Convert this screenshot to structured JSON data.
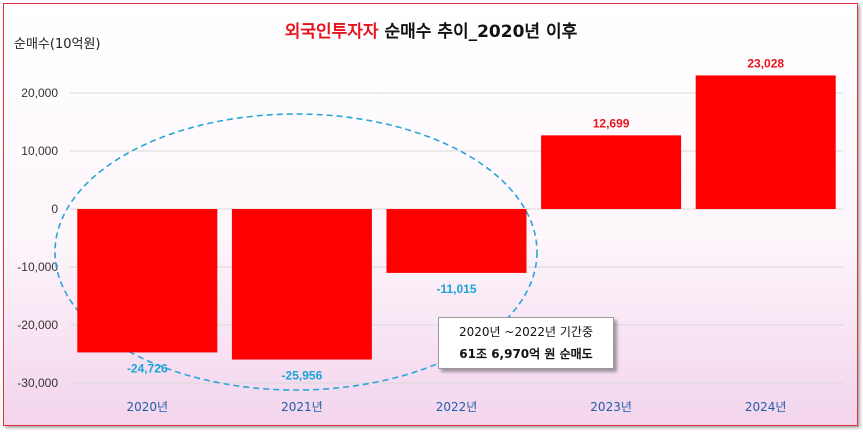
{
  "chart_data": {
    "type": "bar",
    "title_highlight": "외국인투자자",
    "title_rest": " 순매수 추이_2020년 이후",
    "ylabel": "순매수(10억원)",
    "categories": [
      "2020년",
      "2021년",
      "2022년",
      "2023년",
      "2024년"
    ],
    "values": [
      -24726,
      -25956,
      -11015,
      12699,
      23028
    ],
    "value_labels": [
      "-24,726",
      "-25,956",
      "-11,015",
      "12,699",
      "23,028"
    ],
    "yticks": [
      20000,
      10000,
      0,
      -10000,
      -20000,
      -30000
    ],
    "ytick_labels": [
      "20,000",
      "10,000",
      "0",
      "-10,000",
      "-20,000",
      "-30,000"
    ],
    "ylim": [
      -30000,
      23028
    ],
    "grid": true,
    "legend": "none",
    "colors": {
      "bar": "#ff0000",
      "title_highlight": "#e8141c",
      "title_rest": "#111111",
      "positive_label": "#e8141c",
      "negative_label": "#1aa3d9",
      "ellipse": "#2aa6d8",
      "grid": "#d9d9d9",
      "axis_category": "#1f5fa8"
    },
    "annotation": {
      "line1": "2020년 ~2022년 기간중",
      "line2": "61조 6,970억 원 순매도"
    }
  }
}
